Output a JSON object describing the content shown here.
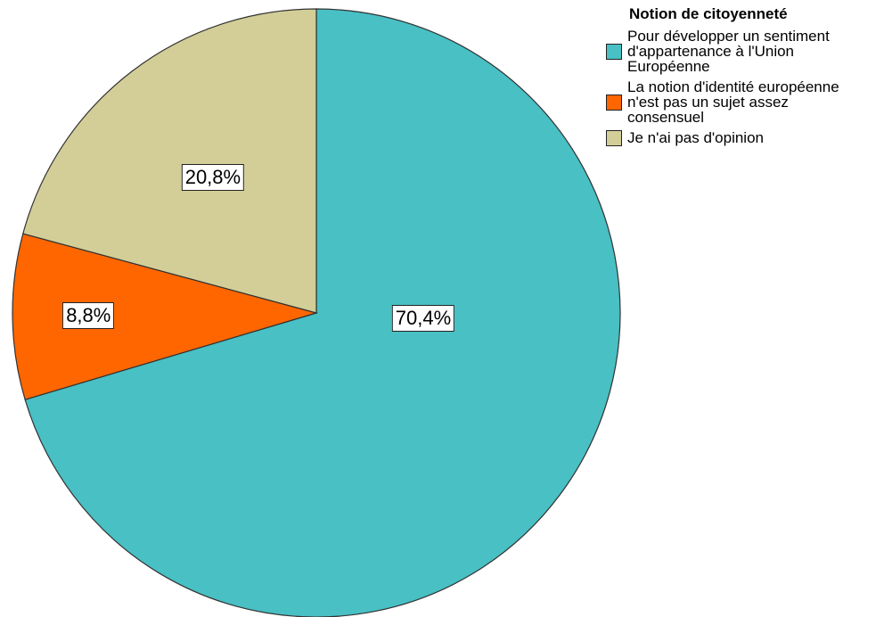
{
  "chart_data": {
    "type": "pie",
    "legend_title": "Notion de citoyenneté",
    "categories": [
      "Pour développer un sentiment d'appartenance à l'Union Européenne",
      "La notion d'identité européenne n'est pas un sujet assez consensuel",
      "Je n'ai pas d'opinion"
    ],
    "values": [
      70.4,
      8.8,
      20.8
    ],
    "value_labels": [
      "70,4%",
      "8,8%",
      "20,8%"
    ],
    "colors": [
      "#48c0c4",
      "#ff6600",
      "#d3ce97"
    ],
    "legend": "upper right"
  }
}
